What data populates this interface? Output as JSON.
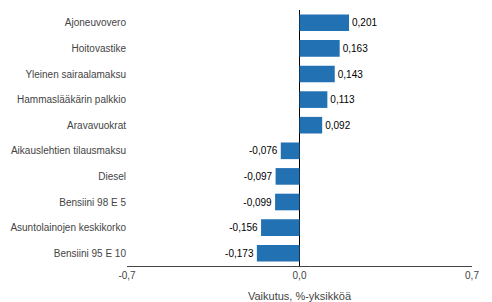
{
  "chart_data": {
    "type": "bar",
    "orientation": "horizontal",
    "categories": [
      "Bensiini 95 E 10",
      "Asuntolainojen keskikorko",
      "Bensiini 98 E 5",
      "Diesel",
      "Aikauslehtien tilausmaksu",
      "Aravavuokrat",
      "Hammaslääkärin palkkio",
      "Yleinen sairaalamaksu",
      "Hoitovastike",
      "Ajoneuvovero"
    ],
    "values": [
      -0.173,
      -0.156,
      -0.099,
      -0.097,
      -0.076,
      0.092,
      0.113,
      0.143,
      0.163,
      0.201
    ],
    "value_labels": [
      "-0,173",
      "-0,156",
      "-0,099",
      "-0,097",
      "-0,076",
      "0,092",
      "0,113",
      "0,143",
      "0,163",
      "0,201"
    ],
    "color": "#2271b3",
    "xlabel": "Vaikutus, %-yksikköä",
    "xlim": [
      -0.7,
      0.7
    ],
    "xticks": [
      {
        "value": -0.7,
        "label": "-0,7"
      },
      {
        "value": 0.0,
        "label": "0,0"
      },
      {
        "value": 0.7,
        "label": "0,7"
      }
    ],
    "grid": true,
    "data_labels": true
  }
}
